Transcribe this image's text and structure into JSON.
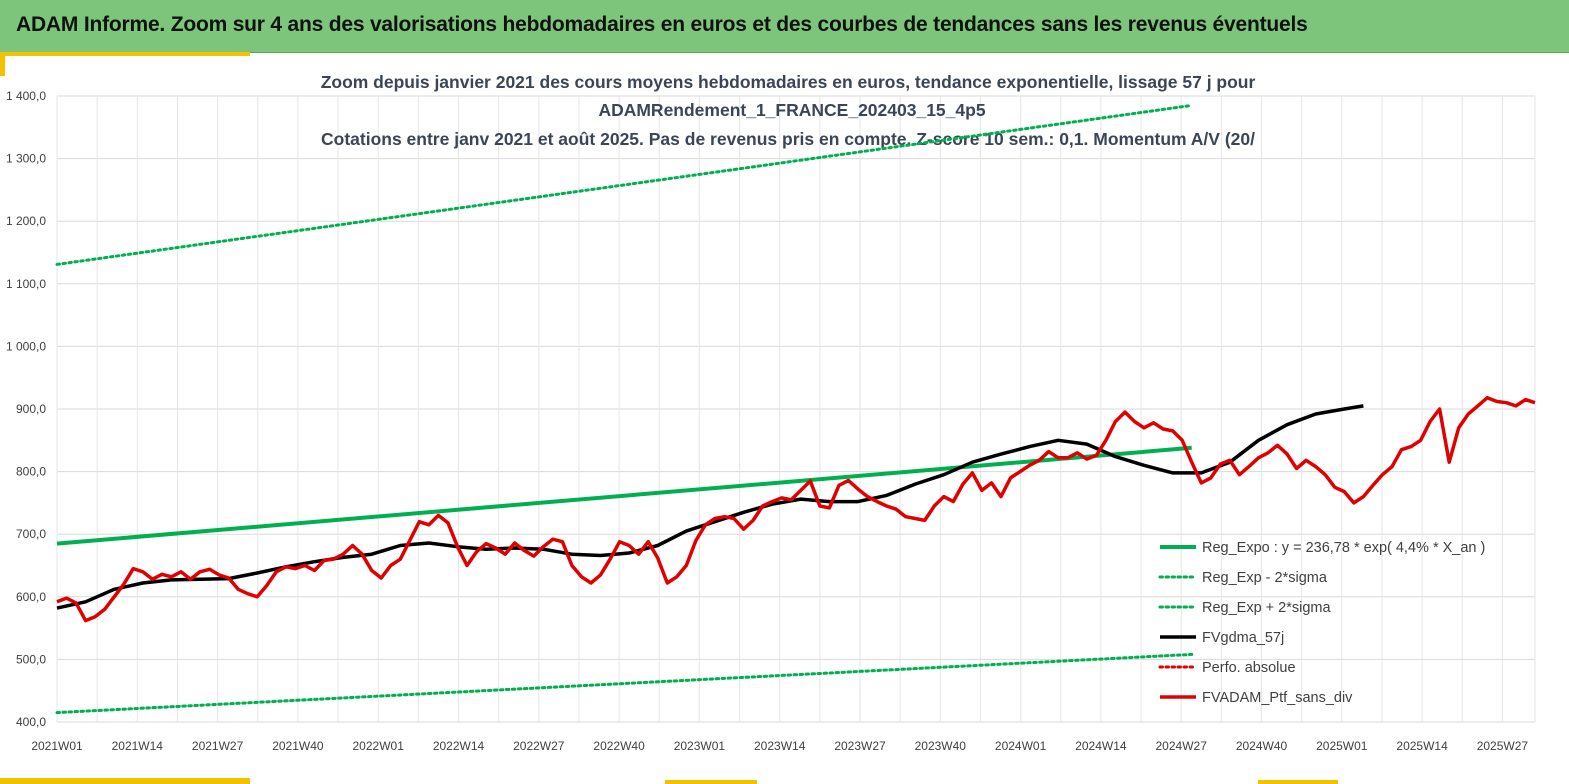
{
  "banner": {
    "title": "ADAM Informe. Zoom sur 4 ans des valorisations hebdomadaires en euros et des courbes de tendances sans les revenus éventuels"
  },
  "colors": {
    "banner": "#7cc57a",
    "accent": "#f2c200",
    "green": "#00b050",
    "red": "#e00000",
    "black": "#000000"
  },
  "chart_data": {
    "type": "line",
    "title_lines": [
      "Zoom depuis janvier 2021 des cours moyens hebdomadaires  en euros, tendance exponentielle, lissage 57 j pour",
      "ADAMRendement_1_FRANCE_202403_15_4p5",
      "Cotations entre janv 2021 et août 2025. Pas de revenus pris en compte. Z-score 10 sem.: 0,1. Momentum A/V (20/"
    ],
    "ylim": [
      400,
      1400
    ],
    "y_ticks": [
      "400,0",
      "500,0",
      "600,0",
      "700,0",
      "800,0",
      "900,0",
      "1 000,0",
      "1 100,0",
      "1 200,0",
      "1 300,0",
      "1 400,0"
    ],
    "x_ticks": [
      "2021W01",
      "2021W14",
      "2021W27",
      "2021W40",
      "2022W01",
      "2022W14",
      "2022W27",
      "2022W40",
      "2023W01",
      "2023W14",
      "2023W27",
      "2023W40",
      "2024W01",
      "2024W14",
      "2024W27",
      "2024W40",
      "2025W01",
      "2025W14",
      "2025W27"
    ],
    "grid": "vertical and horizontal",
    "legend_position": "bottom-right",
    "series": [
      {
        "name": "Reg_Expo : y = 236,78 * exp( 4,4% *  X_an )",
        "style": "solid-green",
        "points": [
          [
            0,
            685
          ],
          [
            238,
            838
          ]
        ]
      },
      {
        "name": "Reg_Exp - 2*sigma",
        "style": "dotted-green",
        "points": [
          [
            0,
            415
          ],
          [
            238,
            508
          ]
        ]
      },
      {
        "name": "Reg_Exp + 2*sigma",
        "style": "dotted-green",
        "points": [
          [
            0,
            1131
          ],
          [
            238,
            1385
          ]
        ]
      },
      {
        "name": "FVgdma_57j",
        "style": "solid-black",
        "points": [
          [
            0,
            582
          ],
          [
            6,
            592
          ],
          [
            12,
            612
          ],
          [
            18,
            622
          ],
          [
            24,
            627
          ],
          [
            30,
            628
          ],
          [
            36,
            629
          ],
          [
            42,
            638
          ],
          [
            48,
            648
          ],
          [
            54,
            656
          ],
          [
            60,
            663
          ],
          [
            66,
            668
          ],
          [
            72,
            682
          ],
          [
            78,
            686
          ],
          [
            84,
            680
          ],
          [
            90,
            676
          ],
          [
            96,
            678
          ],
          [
            102,
            676
          ],
          [
            108,
            668
          ],
          [
            114,
            666
          ],
          [
            120,
            670
          ],
          [
            126,
            682
          ],
          [
            132,
            705
          ],
          [
            138,
            720
          ],
          [
            144,
            735
          ],
          [
            150,
            748
          ],
          [
            156,
            756
          ],
          [
            162,
            752
          ],
          [
            168,
            752
          ],
          [
            174,
            762
          ],
          [
            180,
            780
          ],
          [
            186,
            795
          ],
          [
            192,
            815
          ],
          [
            198,
            828
          ],
          [
            204,
            840
          ],
          [
            210,
            850
          ],
          [
            216,
            844
          ],
          [
            222,
            824
          ],
          [
            228,
            810
          ],
          [
            234,
            798
          ],
          [
            240,
            798
          ],
          [
            246,
            815
          ],
          [
            252,
            850
          ],
          [
            258,
            875
          ],
          [
            264,
            892
          ],
          [
            270,
            900
          ],
          [
            274,
            905
          ]
        ]
      },
      {
        "name": "Perfo. absolue",
        "style": "dotted-red",
        "points": []
      },
      {
        "name": "FVADAM_Ptf_sans_div",
        "style": "solid-red",
        "points": [
          [
            0,
            592
          ],
          [
            2,
            598
          ],
          [
            4,
            590
          ],
          [
            6,
            562
          ],
          [
            8,
            568
          ],
          [
            10,
            580
          ],
          [
            12,
            600
          ],
          [
            14,
            620
          ],
          [
            16,
            645
          ],
          [
            18,
            640
          ],
          [
            20,
            628
          ],
          [
            22,
            636
          ],
          [
            24,
            632
          ],
          [
            26,
            640
          ],
          [
            28,
            628
          ],
          [
            30,
            640
          ],
          [
            32,
            644
          ],
          [
            34,
            635
          ],
          [
            36,
            630
          ],
          [
            38,
            612
          ],
          [
            40,
            605
          ],
          [
            42,
            600
          ],
          [
            44,
            618
          ],
          [
            46,
            640
          ],
          [
            48,
            648
          ],
          [
            50,
            645
          ],
          [
            52,
            650
          ],
          [
            54,
            642
          ],
          [
            56,
            658
          ],
          [
            58,
            660
          ],
          [
            60,
            668
          ],
          [
            62,
            682
          ],
          [
            64,
            668
          ],
          [
            66,
            642
          ],
          [
            68,
            630
          ],
          [
            70,
            650
          ],
          [
            72,
            660
          ],
          [
            74,
            690
          ],
          [
            76,
            720
          ],
          [
            78,
            715
          ],
          [
            80,
            730
          ],
          [
            82,
            718
          ],
          [
            84,
            680
          ],
          [
            86,
            650
          ],
          [
            88,
            672
          ],
          [
            90,
            685
          ],
          [
            92,
            678
          ],
          [
            94,
            668
          ],
          [
            96,
            686
          ],
          [
            98,
            674
          ],
          [
            100,
            665
          ],
          [
            102,
            680
          ],
          [
            104,
            692
          ],
          [
            106,
            688
          ],
          [
            108,
            650
          ],
          [
            110,
            632
          ],
          [
            112,
            622
          ],
          [
            114,
            635
          ],
          [
            116,
            660
          ],
          [
            118,
            688
          ],
          [
            120,
            682
          ],
          [
            122,
            668
          ],
          [
            124,
            688
          ],
          [
            126,
            662
          ],
          [
            128,
            622
          ],
          [
            130,
            632
          ],
          [
            132,
            650
          ],
          [
            134,
            690
          ],
          [
            136,
            715
          ],
          [
            138,
            725
          ],
          [
            140,
            728
          ],
          [
            142,
            725
          ],
          [
            144,
            708
          ],
          [
            146,
            722
          ],
          [
            148,
            745
          ],
          [
            150,
            752
          ],
          [
            152,
            758
          ],
          [
            154,
            755
          ],
          [
            156,
            770
          ],
          [
            158,
            785
          ],
          [
            160,
            745
          ],
          [
            162,
            742
          ],
          [
            164,
            778
          ],
          [
            166,
            786
          ],
          [
            168,
            772
          ],
          [
            170,
            760
          ],
          [
            172,
            752
          ],
          [
            174,
            745
          ],
          [
            176,
            740
          ],
          [
            178,
            728
          ],
          [
            180,
            725
          ],
          [
            182,
            722
          ],
          [
            184,
            745
          ],
          [
            186,
            760
          ],
          [
            188,
            752
          ],
          [
            190,
            780
          ],
          [
            192,
            798
          ],
          [
            194,
            770
          ],
          [
            196,
            782
          ],
          [
            198,
            760
          ],
          [
            200,
            790
          ],
          [
            202,
            800
          ],
          [
            204,
            810
          ],
          [
            206,
            818
          ],
          [
            208,
            832
          ],
          [
            210,
            822
          ],
          [
            212,
            822
          ],
          [
            214,
            830
          ],
          [
            216,
            820
          ],
          [
            218,
            826
          ],
          [
            220,
            850
          ],
          [
            222,
            880
          ],
          [
            224,
            895
          ],
          [
            226,
            880
          ],
          [
            228,
            870
          ],
          [
            230,
            878
          ],
          [
            232,
            868
          ],
          [
            234,
            865
          ],
          [
            236,
            850
          ],
          [
            238,
            815
          ],
          [
            240,
            782
          ],
          [
            242,
            790
          ],
          [
            244,
            812
          ],
          [
            246,
            818
          ],
          [
            248,
            795
          ],
          [
            250,
            808
          ],
          [
            252,
            822
          ],
          [
            254,
            830
          ],
          [
            256,
            842
          ],
          [
            258,
            828
          ],
          [
            260,
            805
          ],
          [
            262,
            818
          ],
          [
            264,
            808
          ],
          [
            266,
            795
          ],
          [
            268,
            775
          ],
          [
            270,
            768
          ],
          [
            272,
            750
          ],
          [
            274,
            760
          ],
          [
            276,
            778
          ],
          [
            278,
            795
          ],
          [
            280,
            808
          ],
          [
            282,
            835
          ],
          [
            284,
            840
          ],
          [
            286,
            850
          ],
          [
            288,
            880
          ],
          [
            290,
            900
          ],
          [
            292,
            815
          ],
          [
            294,
            870
          ],
          [
            296,
            892
          ],
          [
            298,
            905
          ],
          [
            300,
            918
          ],
          [
            302,
            912
          ],
          [
            304,
            910
          ],
          [
            306,
            905
          ],
          [
            308,
            915
          ],
          [
            310,
            910
          ]
        ]
      }
    ]
  }
}
